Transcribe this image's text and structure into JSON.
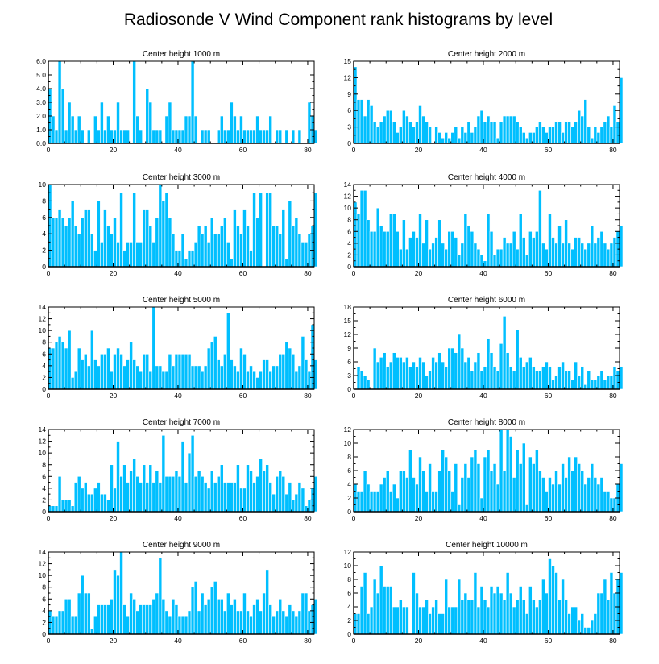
{
  "figure": {
    "title": "Radiosonde V Wind Component rank histograms by level",
    "bar_color": "#00BFFF"
  },
  "chart_data": [
    {
      "type": "bar",
      "title": "Center height 1000 m",
      "x_start": 0,
      "xlim": [
        0,
        82
      ],
      "ylim": [
        0,
        6
      ],
      "xticks": [
        0,
        20,
        40,
        60,
        80
      ],
      "xtick_labels": [
        "0",
        "20",
        "40",
        "60",
        "80"
      ],
      "yticks": [
        0,
        1,
        2,
        3,
        4,
        5,
        6
      ],
      "ytick_labels": [
        "0.0",
        "1.0",
        "2.0",
        "3.0",
        "4.0",
        "5.0",
        "6.0"
      ],
      "values": [
        4,
        2,
        1,
        6,
        4,
        1,
        3,
        2,
        1,
        2,
        1,
        0,
        1,
        0,
        2,
        1,
        3,
        1,
        2,
        1,
        1,
        3,
        1,
        1,
        1,
        0,
        6,
        2,
        1,
        0,
        4,
        3,
        1,
        1,
        1,
        0,
        2,
        3,
        1,
        1,
        1,
        1,
        2,
        2,
        6,
        2,
        0,
        1,
        1,
        1,
        0,
        0,
        1,
        2,
        1,
        1,
        3,
        2,
        1,
        2,
        1,
        1,
        1,
        1,
        2,
        1,
        1,
        1,
        2,
        0,
        1,
        1,
        0,
        1,
        0,
        1,
        0,
        1,
        0,
        0,
        3,
        2,
        1
      ]
    },
    {
      "type": "bar",
      "title": "Center height 2000 m",
      "x_start": 0,
      "xlim": [
        0,
        82
      ],
      "ylim": [
        0,
        15
      ],
      "xticks": [
        0,
        20,
        40,
        60,
        80
      ],
      "xtick_labels": [
        "0",
        "20",
        "40",
        "60",
        "80"
      ],
      "yticks": [
        0,
        3,
        6,
        9,
        12,
        15
      ],
      "ytick_labels": [
        "0",
        "3",
        "6",
        "9",
        "12",
        "15"
      ],
      "values": [
        14,
        8,
        8,
        5,
        8,
        7,
        4,
        3,
        4,
        5,
        6,
        6,
        4,
        2,
        3,
        6,
        5,
        4,
        3,
        4,
        7,
        5,
        4,
        3,
        0,
        3,
        2,
        1,
        2,
        1,
        2,
        3,
        1,
        3,
        2,
        4,
        2,
        3,
        5,
        6,
        4,
        5,
        4,
        4,
        1,
        4,
        5,
        5,
        5,
        5,
        4,
        3,
        2,
        1,
        2,
        2,
        3,
        4,
        3,
        2,
        3,
        3,
        4,
        4,
        2,
        4,
        4,
        3,
        4,
        6,
        5,
        8,
        3,
        1,
        3,
        2,
        3,
        4,
        5,
        3,
        7,
        4,
        12
      ]
    },
    {
      "type": "bar",
      "title": "Center height 3000 m",
      "x_start": 0,
      "xlim": [
        0,
        82
      ],
      "ylim": [
        0,
        10
      ],
      "xticks": [
        0,
        20,
        40,
        60,
        80
      ],
      "xtick_labels": [
        "0",
        "20",
        "40",
        "60",
        "80"
      ],
      "yticks": [
        0,
        2,
        4,
        6,
        8,
        10
      ],
      "ytick_labels": [
        "0",
        "2",
        "4",
        "6",
        "8",
        "10"
      ],
      "values": [
        10,
        6,
        6,
        7,
        6,
        5,
        6,
        8,
        5,
        4,
        6,
        7,
        7,
        4,
        2,
        8,
        3,
        7,
        5,
        4,
        6,
        3,
        9,
        2,
        3,
        3,
        9,
        3,
        3,
        7,
        7,
        5,
        3,
        6,
        10,
        8,
        9,
        6,
        4,
        2,
        2,
        4,
        1,
        2,
        2,
        3,
        5,
        4,
        5,
        3,
        6,
        4,
        4,
        5,
        6,
        3,
        1,
        7,
        5,
        4,
        7,
        5,
        2,
        9,
        6,
        9,
        0,
        9,
        9,
        5,
        5,
        4,
        7,
        1,
        8,
        5,
        6,
        4,
        3,
        3,
        4,
        5,
        9
      ]
    },
    {
      "type": "bar",
      "title": "Center height 4000 m",
      "x_start": 0,
      "xlim": [
        0,
        82
      ],
      "ylim": [
        0,
        14
      ],
      "xticks": [
        0,
        20,
        40,
        60,
        80
      ],
      "xtick_labels": [
        "0",
        "20",
        "40",
        "60",
        "80"
      ],
      "yticks": [
        0,
        2,
        4,
        6,
        8,
        10,
        12,
        14
      ],
      "ytick_labels": [
        "0",
        "2",
        "4",
        "6",
        "8",
        "10",
        "12",
        "14"
      ],
      "values": [
        11,
        9,
        13,
        13,
        8,
        6,
        6,
        10,
        7,
        6,
        6,
        9,
        9,
        6,
        3,
        8,
        3,
        5,
        6,
        5,
        9,
        4,
        8,
        3,
        4,
        5,
        8,
        4,
        3,
        6,
        6,
        5,
        2,
        4,
        9,
        7,
        6,
        4,
        3,
        2,
        1,
        9,
        6,
        2,
        3,
        3,
        5,
        4,
        4,
        6,
        3,
        9,
        5,
        2,
        6,
        5,
        6,
        13,
        4,
        3,
        9,
        5,
        4,
        7,
        4,
        8,
        4,
        3,
        5,
        5,
        4,
        3,
        4,
        7,
        4,
        5,
        6,
        4,
        3,
        4,
        5,
        6,
        7
      ]
    },
    {
      "type": "bar",
      "title": "Center height 5000 m",
      "x_start": 0,
      "xlim": [
        0,
        82
      ],
      "ylim": [
        0,
        14
      ],
      "xticks": [
        0,
        20,
        40,
        60,
        80
      ],
      "xtick_labels": [
        "0",
        "20",
        "40",
        "60",
        "80"
      ],
      "yticks": [
        0,
        2,
        4,
        6,
        8,
        10,
        12,
        14
      ],
      "ytick_labels": [
        "0",
        "2",
        "4",
        "6",
        "8",
        "10",
        "12",
        "14"
      ],
      "values": [
        7,
        7,
        8,
        9,
        8,
        7,
        10,
        2,
        3,
        7,
        5,
        6,
        4,
        10,
        5,
        4,
        6,
        6,
        7,
        3,
        6,
        7,
        6,
        4,
        5,
        8,
        5,
        4,
        3,
        6,
        6,
        3,
        14,
        4,
        4,
        3,
        3,
        6,
        4,
        6,
        6,
        6,
        6,
        6,
        4,
        4,
        4,
        3,
        4,
        7,
        8,
        9,
        5,
        4,
        6,
        13,
        5,
        4,
        3,
        7,
        6,
        3,
        4,
        3,
        2,
        3,
        5,
        5,
        3,
        4,
        4,
        6,
        6,
        8,
        7,
        6,
        3,
        4,
        9,
        5,
        3,
        11,
        5
      ]
    },
    {
      "type": "bar",
      "title": "Center height 6000 m",
      "x_start": 0,
      "xlim": [
        0,
        82
      ],
      "ylim": [
        0,
        18
      ],
      "xticks": [
        0,
        20,
        40,
        60,
        80
      ],
      "xtick_labels": [
        "0",
        "20",
        "40",
        "60",
        "80"
      ],
      "yticks": [
        0,
        3,
        6,
        9,
        12,
        15,
        18
      ],
      "ytick_labels": [
        "0",
        "3",
        "6",
        "9",
        "12",
        "15",
        "18"
      ],
      "values": [
        0,
        5,
        4,
        3,
        2,
        0,
        9,
        6,
        7,
        8,
        5,
        6,
        8,
        7,
        7,
        6,
        7,
        5,
        6,
        5,
        7,
        6,
        3,
        4,
        7,
        6,
        8,
        6,
        5,
        9,
        9,
        8,
        12,
        9,
        6,
        7,
        4,
        6,
        8,
        4,
        5,
        11,
        8,
        5,
        4,
        10,
        16,
        8,
        5,
        4,
        13,
        7,
        5,
        6,
        7,
        5,
        4,
        4,
        5,
        6,
        5,
        2,
        3,
        5,
        6,
        4,
        4,
        2,
        6,
        3,
        5,
        1,
        4,
        2,
        2,
        3,
        4,
        2,
        3,
        3,
        5,
        4,
        5
      ]
    },
    {
      "type": "bar",
      "title": "Center height 7000 m",
      "x_start": 0,
      "xlim": [
        0,
        82
      ],
      "ylim": [
        0,
        14
      ],
      "xticks": [
        0,
        20,
        40,
        60,
        80
      ],
      "xtick_labels": [
        "0",
        "20",
        "40",
        "60",
        "80"
      ],
      "yticks": [
        0,
        2,
        4,
        6,
        8,
        10,
        12,
        14
      ],
      "ytick_labels": [
        "0",
        "2",
        "4",
        "6",
        "8",
        "10",
        "12",
        "14"
      ],
      "values": [
        1,
        1,
        1,
        6,
        2,
        2,
        2,
        1,
        5,
        6,
        4,
        5,
        3,
        3,
        4,
        5,
        3,
        3,
        2,
        8,
        4,
        12,
        6,
        8,
        5,
        7,
        9,
        6,
        5,
        8,
        5,
        8,
        5,
        7,
        5,
        13,
        6,
        6,
        6,
        7,
        6,
        12,
        5,
        10,
        13,
        6,
        7,
        6,
        5,
        4,
        7,
        5,
        6,
        8,
        5,
        5,
        5,
        5,
        8,
        4,
        4,
        8,
        7,
        5,
        6,
        9,
        7,
        8,
        5,
        3,
        6,
        7,
        6,
        3,
        5,
        2,
        3,
        5,
        4,
        1,
        2,
        4,
        6
      ]
    },
    {
      "type": "bar",
      "title": "Center height 8000 m",
      "x_start": 0,
      "xlim": [
        0,
        82
      ],
      "ylim": [
        0,
        12
      ],
      "xticks": [
        0,
        20,
        40,
        60,
        80
      ],
      "xtick_labels": [
        "0",
        "20",
        "40",
        "60",
        "80"
      ],
      "yticks": [
        0,
        2,
        4,
        6,
        8,
        10,
        12
      ],
      "ytick_labels": [
        "0",
        "2",
        "4",
        "6",
        "8",
        "10",
        "12"
      ],
      "values": [
        4,
        3,
        3,
        6,
        4,
        3,
        3,
        3,
        4,
        5,
        6,
        3,
        4,
        2,
        6,
        6,
        5,
        9,
        5,
        4,
        8,
        6,
        3,
        7,
        3,
        3,
        6,
        9,
        8,
        6,
        3,
        7,
        1,
        5,
        7,
        5,
        8,
        9,
        7,
        2,
        8,
        9,
        6,
        7,
        4,
        12,
        6,
        12,
        11,
        5,
        9,
        7,
        10,
        1,
        8,
        7,
        9,
        6,
        5,
        3,
        5,
        4,
        6,
        4,
        7,
        5,
        8,
        6,
        8,
        7,
        6,
        4,
        5,
        7,
        5,
        4,
        5,
        3,
        3,
        2,
        2,
        4,
        7
      ]
    },
    {
      "type": "bar",
      "title": "Center height 9000 m",
      "x_start": 0,
      "xlim": [
        0,
        82
      ],
      "ylim": [
        0,
        14
      ],
      "xticks": [
        0,
        20,
        40,
        60,
        80
      ],
      "xtick_labels": [
        "0",
        "20",
        "40",
        "60",
        "80"
      ],
      "yticks": [
        0,
        2,
        4,
        6,
        8,
        10,
        12,
        14
      ],
      "ytick_labels": [
        "0",
        "2",
        "4",
        "6",
        "8",
        "10",
        "12",
        "14"
      ],
      "values": [
        4,
        3,
        3,
        4,
        4,
        6,
        6,
        3,
        3,
        7,
        10,
        7,
        7,
        1,
        3,
        5,
        5,
        5,
        5,
        6,
        11,
        10,
        14,
        5,
        3,
        7,
        6,
        4,
        5,
        5,
        5,
        5,
        6,
        7,
        13,
        6,
        4,
        3,
        6,
        5,
        3,
        3,
        3,
        4,
        8,
        9,
        4,
        7,
        5,
        6,
        8,
        9,
        6,
        6,
        4,
        7,
        5,
        6,
        4,
        4,
        7,
        4,
        3,
        5,
        6,
        4,
        7,
        11,
        5,
        3,
        4,
        6,
        4,
        3,
        5,
        4,
        3,
        4,
        7,
        7,
        4,
        5,
        6
      ]
    },
    {
      "type": "bar",
      "title": "Center height 10000 m",
      "x_start": 0,
      "xlim": [
        0,
        82
      ],
      "ylim": [
        0,
        12
      ],
      "xticks": [
        0,
        20,
        40,
        60,
        80
      ],
      "xtick_labels": [
        "0",
        "20",
        "40",
        "60",
        "80"
      ],
      "yticks": [
        0,
        2,
        4,
        6,
        8,
        10,
        12
      ],
      "ytick_labels": [
        "0",
        "2",
        "4",
        "6",
        "8",
        "10",
        "12"
      ],
      "values": [
        3,
        3,
        7,
        9,
        3,
        4,
        8,
        6,
        10,
        7,
        7,
        7,
        4,
        4,
        5,
        4,
        4,
        0,
        9,
        6,
        4,
        4,
        5,
        3,
        4,
        5,
        3,
        3,
        8,
        4,
        4,
        4,
        8,
        5,
        6,
        5,
        5,
        9,
        4,
        7,
        5,
        4,
        7,
        6,
        7,
        6,
        5,
        9,
        6,
        4,
        5,
        7,
        5,
        3,
        7,
        5,
        4,
        5,
        8,
        6,
        11,
        10,
        9,
        5,
        8,
        5,
        3,
        4,
        4,
        2,
        3,
        1,
        1,
        2,
        3,
        6,
        6,
        8,
        5,
        9,
        6,
        8,
        9
      ]
    }
  ]
}
